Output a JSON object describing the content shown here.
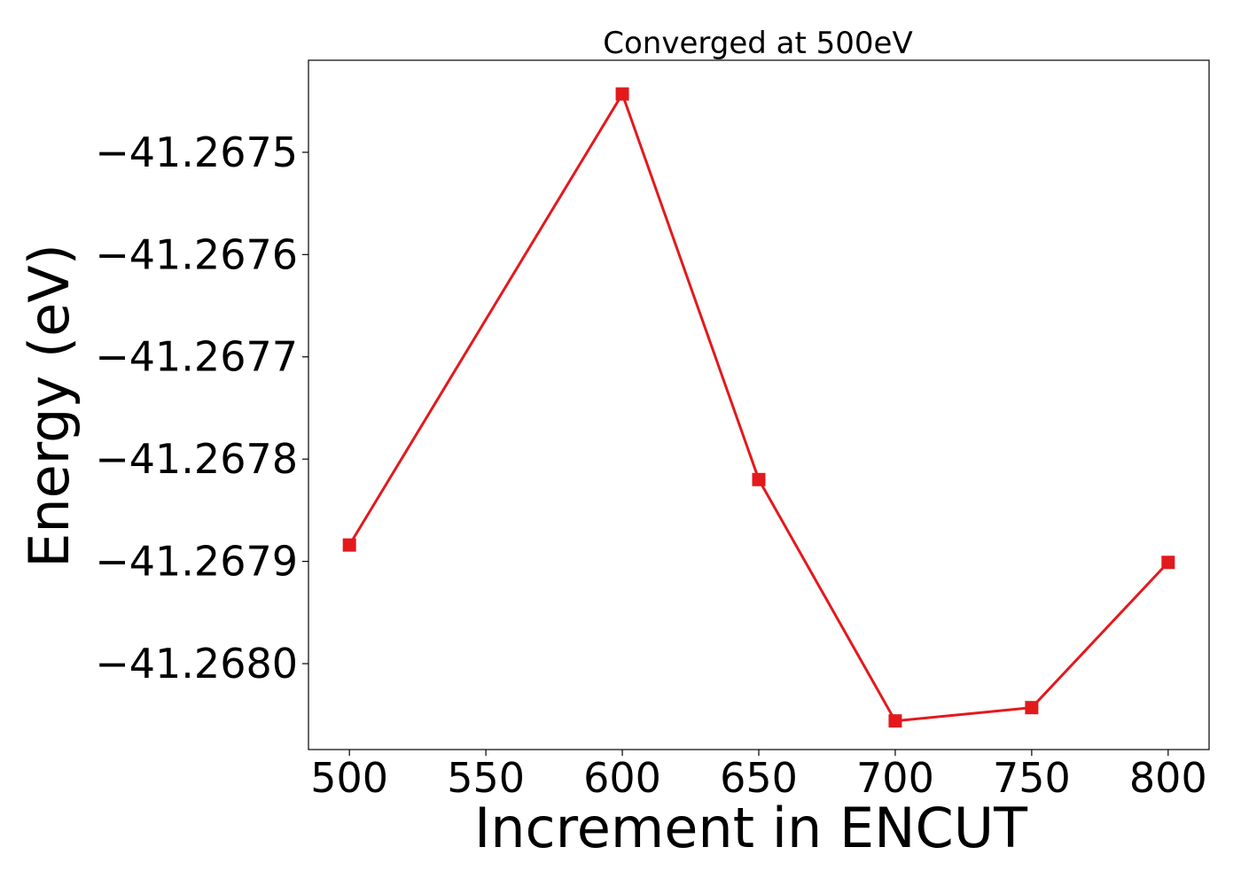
{
  "chart_data": {
    "type": "line",
    "title": "Converged at 500eV",
    "xlabel": "Increment in ENCUT",
    "ylabel": "Energy (eV)",
    "x": [
      500,
      600,
      650,
      700,
      750,
      800
    ],
    "series": [
      {
        "values": [
          -41.267884,
          -41.267443,
          -41.26782,
          -41.268056,
          -41.268043,
          -41.267901
        ],
        "color": "#e3191c",
        "marker": "square"
      }
    ],
    "xlim": [
      485,
      815
    ],
    "ylim": [
      -41.268084,
      -41.26741
    ],
    "xticks": [
      500,
      550,
      600,
      650,
      700,
      750,
      800
    ],
    "xtick_labels": [
      "500",
      "550",
      "600",
      "650",
      "700",
      "750",
      "800"
    ],
    "yticks": [
      -41.2675,
      -41.2676,
      -41.2677,
      -41.2678,
      -41.2679,
      -41.268
    ],
    "ytick_labels": [
      "−41.2675",
      "−41.2676",
      "−41.2677",
      "−41.2678",
      "−41.2679",
      "−41.2680"
    ],
    "grid": false,
    "legend": false
  }
}
